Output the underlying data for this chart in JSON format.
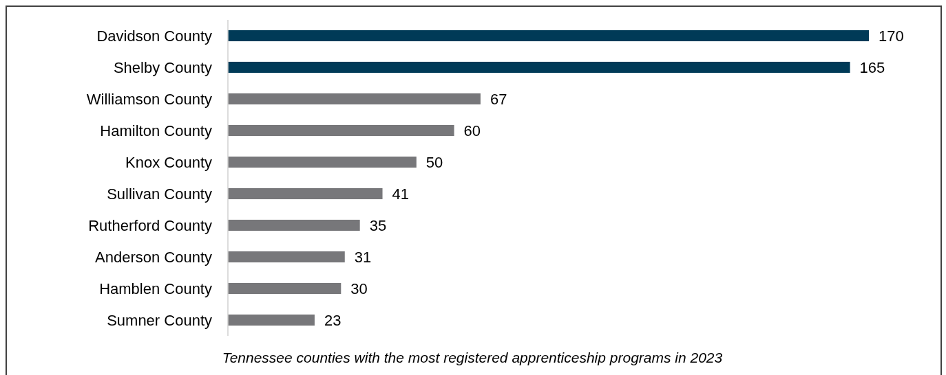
{
  "chart_data": {
    "type": "bar",
    "orientation": "horizontal",
    "categories": [
      "Davidson County",
      "Shelby County",
      "Williamson County",
      "Hamilton County",
      "Knox County",
      "Sullivan County",
      "Rutherford County",
      "Anderson County",
      "Hamblen County",
      "Sumner County"
    ],
    "values": [
      170,
      165,
      67,
      60,
      50,
      41,
      35,
      31,
      30,
      23
    ],
    "colors": [
      "#003a57",
      "#003a57",
      "#77777a",
      "#77777a",
      "#77777a",
      "#77777a",
      "#77777a",
      "#77777a",
      "#77777a",
      "#77777a"
    ],
    "data_labels": true,
    "annotations": [
      "Tennessee counties with the most registered apprenticeship programs in 2023"
    ]
  }
}
